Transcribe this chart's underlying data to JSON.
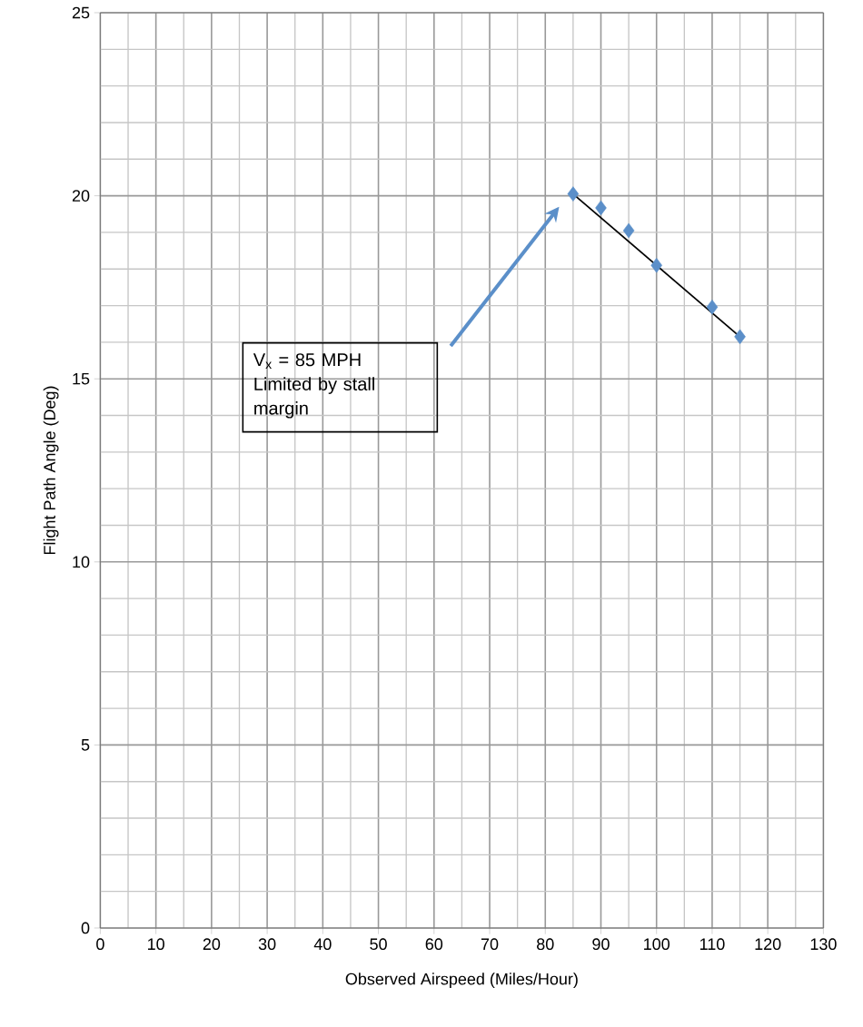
{
  "chart_data": {
    "type": "scatter",
    "xlabel": "Observed Airspeed (Miles/Hour)",
    "ylabel": "Flight Path Angle (Deg)",
    "xlim": [
      0,
      130
    ],
    "ylim": [
      0,
      25
    ],
    "xticks": [
      0,
      10,
      20,
      30,
      40,
      50,
      60,
      70,
      80,
      90,
      100,
      110,
      120,
      130
    ],
    "yticks": [
      0,
      5,
      10,
      15,
      20,
      25
    ],
    "grid": true,
    "marker": "diamond",
    "series": [
      {
        "color": "#5b8fc9",
        "x": [
          85,
          90,
          95,
          100,
          110,
          115
        ],
        "values": [
          20.05,
          19.67,
          19.05,
          18.1,
          16.96,
          16.15
        ]
      },
      {
        "type": "line",
        "color": "#000000",
        "marker": "none",
        "x": [
          85,
          115
        ],
        "values": [
          20.05,
          16.15
        ]
      }
    ],
    "annotations": [
      "V$_{x}$ = 85 MPH Limited by stall margin"
    ]
  }
}
